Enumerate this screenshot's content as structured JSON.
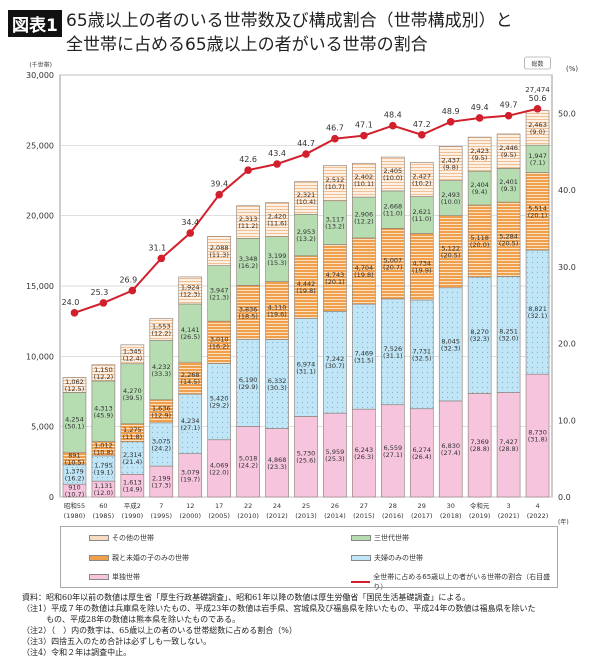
{
  "header": {
    "badge": "図表1",
    "title_line1": "65歳以上の者のいる世帯数及び構成割合（世帯構成別）と",
    "title_line2": "全世帯に占める65歳以上の者がいる世帯の割合"
  },
  "chart_data": {
    "type": "bar",
    "stacked": true,
    "title": "65歳以上の者のいる世帯数及び構成割合（世帯構成別）と全世帯に占める65歳以上の者がいる世帯の割合",
    "ylabel": "(千世帯)",
    "y2label": "(%)",
    "xunit": "(年)",
    "ylim": [
      0,
      30000
    ],
    "y2lim": [
      0,
      55
    ],
    "yticks": [
      "0",
      "5,000",
      "10,000",
      "15,000",
      "20,000",
      "25,000",
      "30,000"
    ],
    "y2ticks": [
      "0.0",
      "10.0",
      "20.0",
      "30.0",
      "40.0",
      "50.0"
    ],
    "grid": true,
    "legend": "bottom",
    "categories": [
      [
        "昭和55",
        "(1980)"
      ],
      [
        "60",
        "(1985)"
      ],
      [
        "平成2",
        "(1990)"
      ],
      [
        "7",
        "(1995)"
      ],
      [
        "12",
        "(2000)"
      ],
      [
        "17",
        "(2005)"
      ],
      [
        "22",
        "(2010)"
      ],
      [
        "24",
        "(2012)"
      ],
      [
        "25",
        "(2013)"
      ],
      [
        "26",
        "(2014)"
      ],
      [
        "27",
        "(2015)"
      ],
      [
        "28",
        "(2016)"
      ],
      [
        "29",
        "(2017)"
      ],
      [
        "30",
        "(2018)"
      ],
      [
        "令和元",
        "(2019)"
      ],
      [
        "3",
        "(2021)"
      ],
      [
        "4",
        "(2022)"
      ]
    ],
    "series": [
      {
        "name": "単独世帯",
        "color": "#f6c4dc",
        "pattern": "plain",
        "values": [
          910,
          1131,
          1613,
          2199,
          3079,
          4069,
          5018,
          4868,
          5730,
          5959,
          6243,
          6559,
          6274,
          6830,
          7369,
          7427,
          8730
        ],
        "percent": [
          10.7,
          12.0,
          14.9,
          17.3,
          19.7,
          22.0,
          24.2,
          23.3,
          25.6,
          25.3,
          26.3,
          27.1,
          26.4,
          27.4,
          28.8,
          28.8,
          31.8
        ]
      },
      {
        "name": "夫婦のみの世帯",
        "color": "#bfe5f6",
        "pattern": "dots",
        "values": [
          1379,
          1795,
          2314,
          3075,
          4234,
          5420,
          6190,
          6332,
          6974,
          7242,
          7469,
          7526,
          7731,
          8045,
          8270,
          8251,
          8821
        ],
        "percent": [
          16.2,
          19.1,
          21.4,
          24.2,
          27.1,
          29.2,
          29.9,
          30.3,
          31.1,
          30.7,
          31.5,
          31.1,
          32.5,
          32.3,
          32.3,
          32.0,
          32.1
        ]
      },
      {
        "name": "親と未婚の子のみの世帯",
        "color": "#f0a04c",
        "pattern": "stripes",
        "values": [
          891,
          1012,
          1275,
          1636,
          2268,
          3010,
          3836,
          4110,
          4442,
          4743,
          4704,
          5007,
          4734,
          5122,
          5118,
          5284,
          5514
        ],
        "percent": [
          10.5,
          10.8,
          11.8,
          12.9,
          14.5,
          16.2,
          18.5,
          19.6,
          19.8,
          20.1,
          19.8,
          20.7,
          19.9,
          20.5,
          20.0,
          20.5,
          20.1
        ]
      },
      {
        "name": "三世代世帯",
        "color": "#b6dcb2",
        "pattern": "plain",
        "values": [
          4254,
          4313,
          4270,
          4232,
          4141,
          3947,
          3348,
          3199,
          2953,
          3117,
          2906,
          2668,
          2621,
          2493,
          2404,
          2401,
          1947
        ],
        "percent": [
          50.1,
          45.9,
          39.5,
          33.3,
          26.5,
          21.3,
          16.2,
          15.3,
          13.2,
          13.2,
          12.2,
          11.0,
          11.0,
          10.0,
          9.4,
          9.3,
          7.1
        ]
      },
      {
        "name": "その他の世帯",
        "color": "#f8dcc2",
        "pattern": "stripes-light",
        "values": [
          1062,
          1150,
          1345,
          1553,
          1924,
          2088,
          2313,
          2420,
          2321,
          2512,
          2402,
          2405,
          2427,
          2437,
          2423,
          2446,
          2463
        ],
        "percent": [
          12.5,
          12.2,
          12.4,
          12.2,
          12.3,
          11.3,
          11.2,
          11.6,
          10.4,
          10.7,
          10.1,
          10.0,
          10.2,
          9.8,
          9.5,
          9.5,
          9.0
        ]
      }
    ],
    "line": {
      "name": "全世帯に占める65歳以上の者がいる世帯の割合（右目盛り）",
      "color": "#d21f2c",
      "values": [
        24.0,
        25.3,
        26.9,
        31.1,
        34.4,
        39.4,
        42.6,
        43.4,
        44.7,
        46.7,
        47.1,
        48.4,
        47.2,
        48.9,
        49.4,
        49.7,
        50.6
      ]
    },
    "annotation": {
      "label": "総数",
      "value": "27,474"
    }
  },
  "legend": {
    "items": [
      "その他の世帯",
      "三世代世帯",
      "親と未婚の子のみの世帯",
      "夫婦のみの世帯",
      "単独世帯",
      "全世帯に占める65歳以上の者がいる世帯の割合（右目盛り）"
    ]
  },
  "notes": [
    "資料：昭和60年以前の数値は厚生省「厚生行政基礎調査」、昭和61年以降の数値は厚生労働省「国民生活基礎調査」による。",
    "（注1）平成７年の数値は兵庫県を除いたもの、平成23年の数値は岩手県、宮城県及び福島県を除いたもの、平成24年の数値は福島県を除いた",
    "　　　もの、平成28年の数値は熊本県を除いたものである。",
    "（注2）（　）内の数字は、65歳以上の者のいる世帯総数に占める割合（%）",
    "（注3）四捨五入のため合計は必ずしも一致しない。",
    "（注4）令和２年は調査中止。"
  ]
}
